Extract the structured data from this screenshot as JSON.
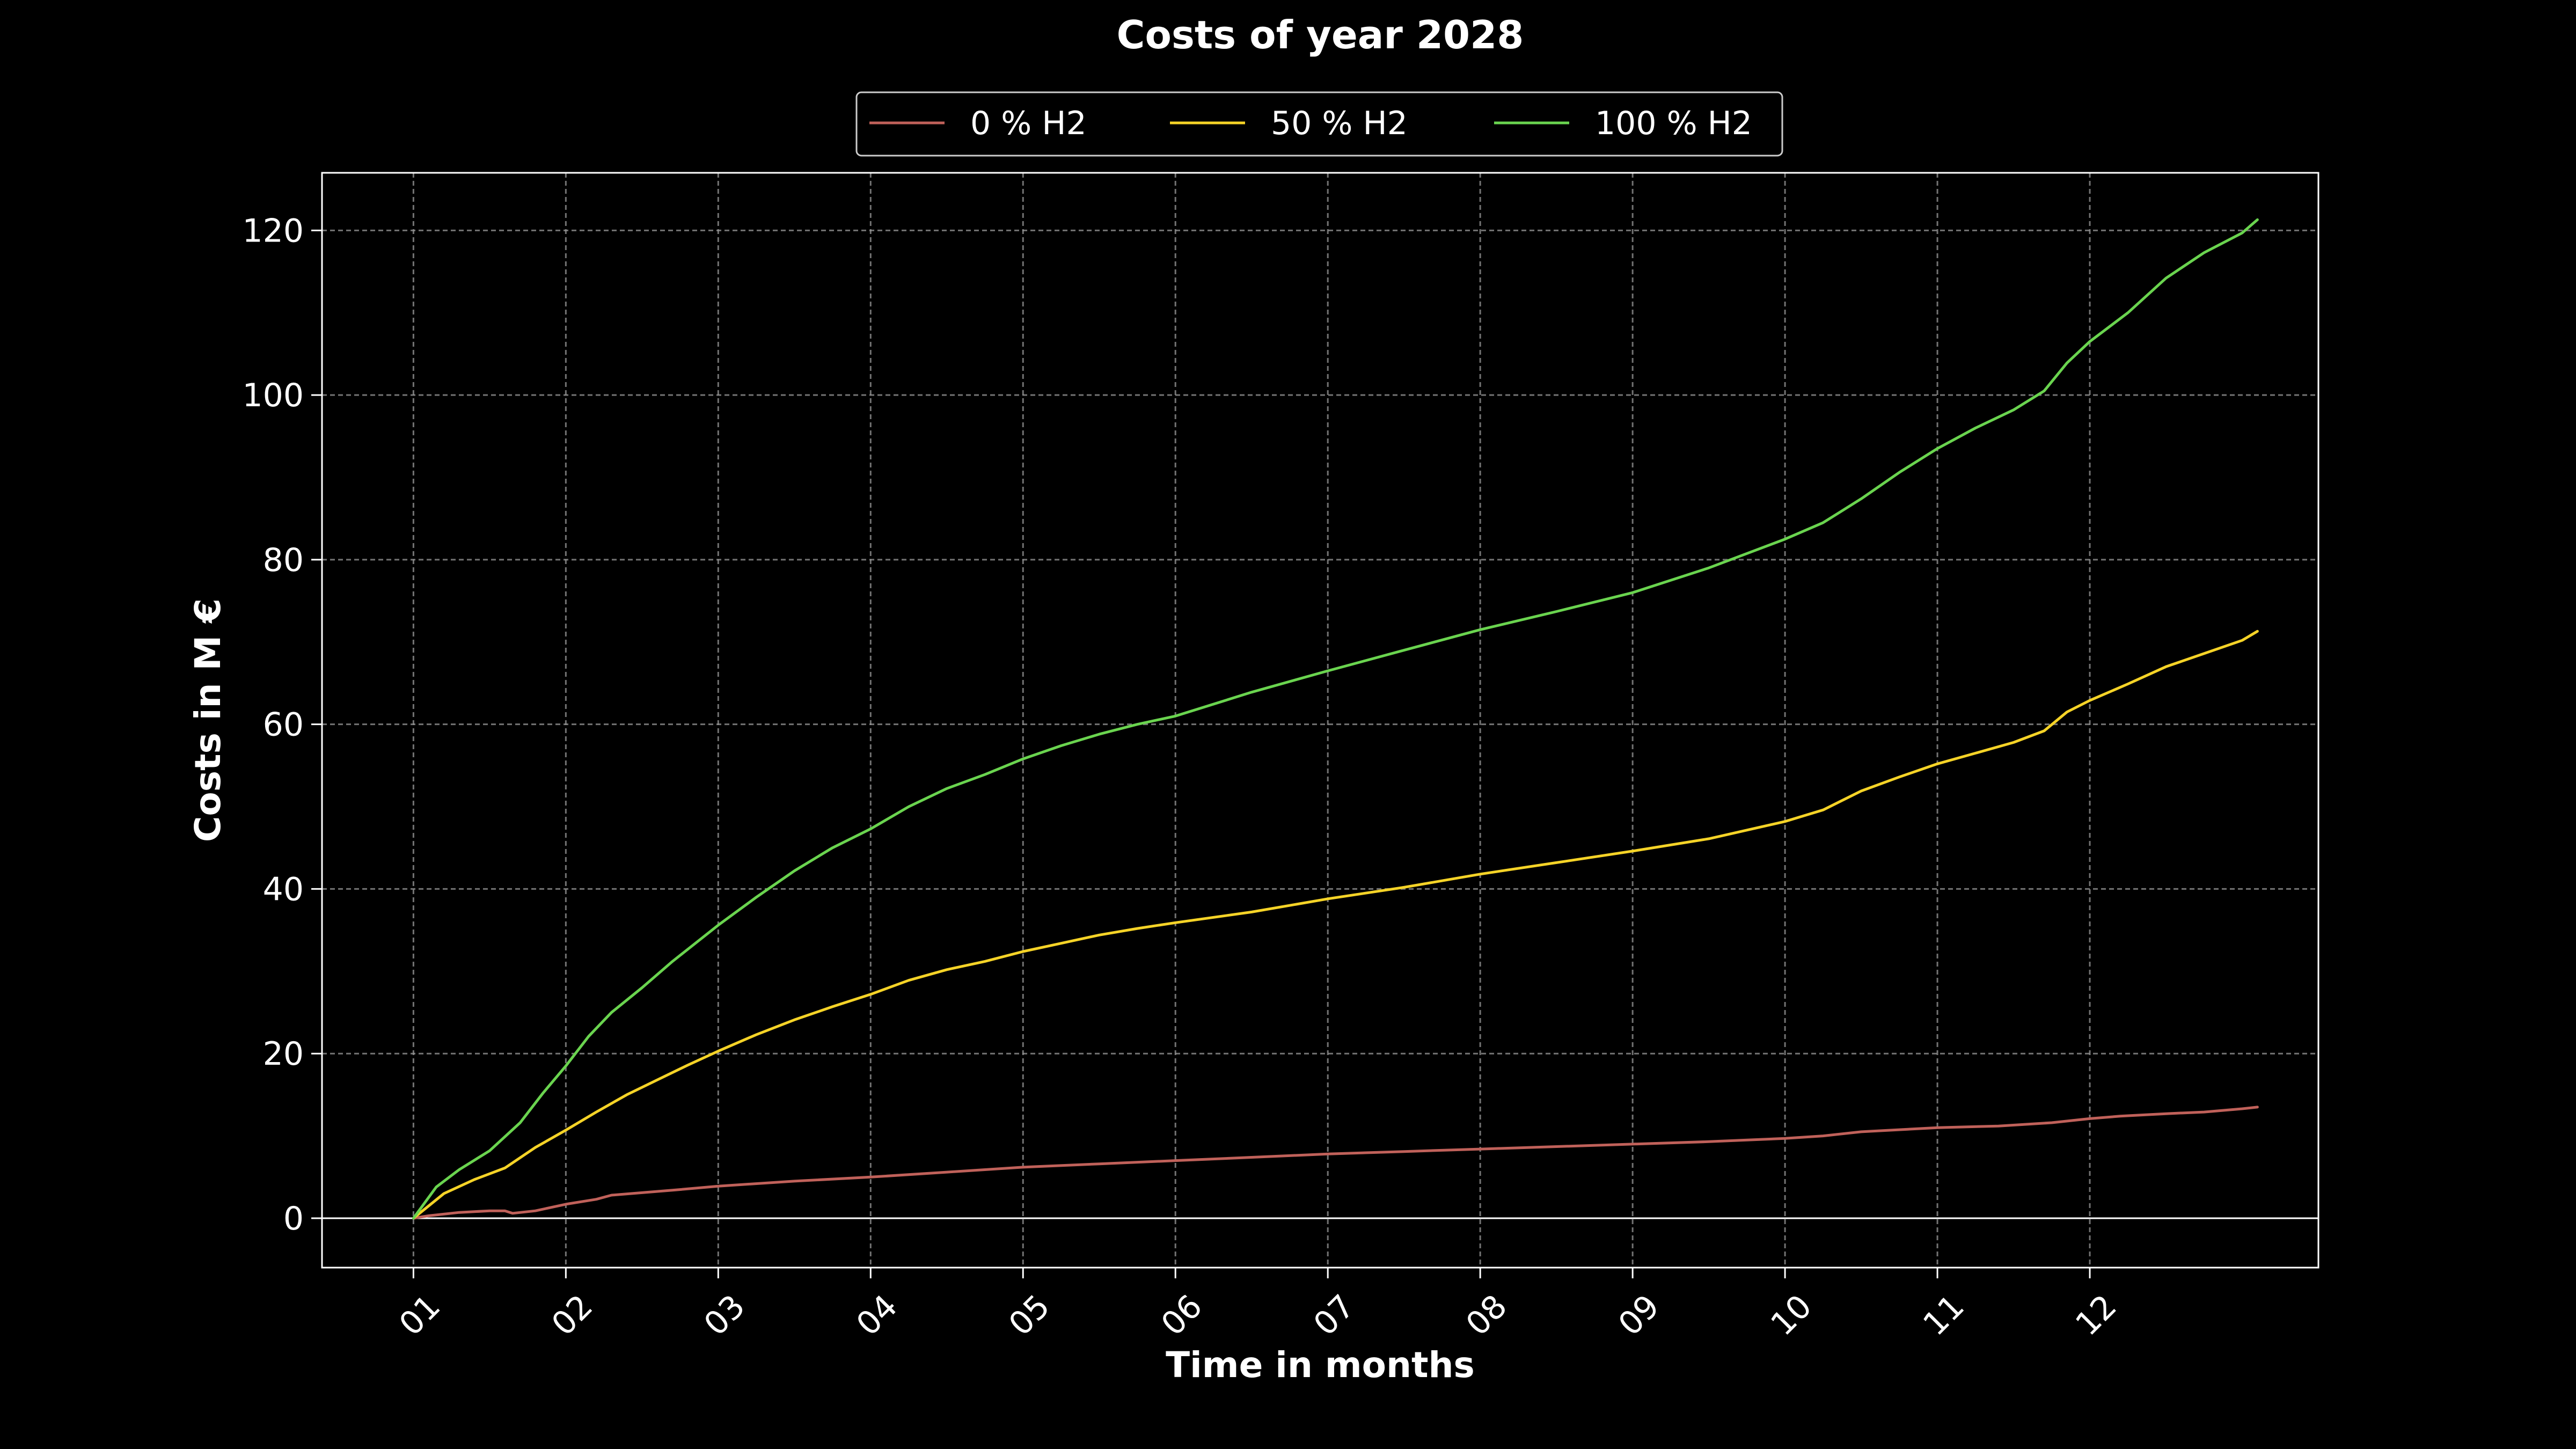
{
  "chart_data": {
    "type": "line",
    "title": "Costs of year 2028",
    "xlabel": "Time in months",
    "ylabel": "Costs in M €",
    "x_ticks": [
      "01",
      "02",
      "03",
      "04",
      "05",
      "06",
      "07",
      "08",
      "09",
      "10",
      "11",
      "12"
    ],
    "xlim": [
      0.4,
      13.5
    ],
    "ylim": [
      -6,
      127
    ],
    "y_ticks": [
      0,
      20,
      40,
      60,
      80,
      100,
      120
    ],
    "grid": true,
    "legend_position": "top-center",
    "series": [
      {
        "name": "0 % H2",
        "color": "#c0615a",
        "points": [
          [
            1.0,
            0
          ],
          [
            1.1,
            0.3
          ],
          [
            1.3,
            0.7
          ],
          [
            1.5,
            0.9
          ],
          [
            1.6,
            0.9
          ],
          [
            1.65,
            0.6
          ],
          [
            1.8,
            0.9
          ],
          [
            2.0,
            1.7
          ],
          [
            2.2,
            2.3
          ],
          [
            2.3,
            2.8
          ],
          [
            2.5,
            3.1
          ],
          [
            2.7,
            3.4
          ],
          [
            3.0,
            3.9
          ],
          [
            3.5,
            4.5
          ],
          [
            4.0,
            5.0
          ],
          [
            4.5,
            5.6
          ],
          [
            5.0,
            6.2
          ],
          [
            5.5,
            6.6
          ],
          [
            6.0,
            7.0
          ],
          [
            6.5,
            7.4
          ],
          [
            7.0,
            7.8
          ],
          [
            7.5,
            8.1
          ],
          [
            8.0,
            8.4
          ],
          [
            8.5,
            8.7
          ],
          [
            9.0,
            9.0
          ],
          [
            9.5,
            9.3
          ],
          [
            10.0,
            9.7
          ],
          [
            10.25,
            10.0
          ],
          [
            10.5,
            10.5
          ],
          [
            11.0,
            11.0
          ],
          [
            11.4,
            11.2
          ],
          [
            11.75,
            11.6
          ],
          [
            12.0,
            12.1
          ],
          [
            12.2,
            12.4
          ],
          [
            12.5,
            12.7
          ],
          [
            12.75,
            12.9
          ],
          [
            13.0,
            13.3
          ],
          [
            13.1,
            13.5
          ]
        ]
      },
      {
        "name": "50 % H2",
        "color": "#f5d327",
        "points": [
          [
            1.0,
            0
          ],
          [
            1.2,
            3.0
          ],
          [
            1.4,
            4.7
          ],
          [
            1.6,
            6.1
          ],
          [
            1.8,
            8.6
          ],
          [
            2.0,
            10.7
          ],
          [
            2.2,
            12.9
          ],
          [
            2.4,
            15.0
          ],
          [
            2.6,
            16.8
          ],
          [
            2.8,
            18.6
          ],
          [
            3.0,
            20.3
          ],
          [
            3.25,
            22.3
          ],
          [
            3.5,
            24.1
          ],
          [
            3.75,
            25.7
          ],
          [
            4.0,
            27.2
          ],
          [
            4.25,
            28.9
          ],
          [
            4.5,
            30.2
          ],
          [
            4.75,
            31.2
          ],
          [
            5.0,
            32.4
          ],
          [
            5.25,
            33.4
          ],
          [
            5.5,
            34.4
          ],
          [
            5.75,
            35.2
          ],
          [
            6.0,
            35.9
          ],
          [
            6.5,
            37.2
          ],
          [
            7.0,
            38.8
          ],
          [
            7.5,
            40.2
          ],
          [
            8.0,
            41.8
          ],
          [
            8.5,
            43.2
          ],
          [
            9.0,
            44.6
          ],
          [
            9.5,
            46.1
          ],
          [
            10.0,
            48.2
          ],
          [
            10.25,
            49.6
          ],
          [
            10.5,
            51.9
          ],
          [
            10.75,
            53.6
          ],
          [
            11.0,
            55.2
          ],
          [
            11.25,
            56.5
          ],
          [
            11.5,
            57.8
          ],
          [
            11.7,
            59.2
          ],
          [
            11.85,
            61.5
          ],
          [
            12.0,
            62.9
          ],
          [
            12.25,
            64.9
          ],
          [
            12.5,
            67.0
          ],
          [
            12.75,
            68.6
          ],
          [
            13.0,
            70.2
          ],
          [
            13.1,
            71.3
          ]
        ]
      },
      {
        "name": "100 % H2",
        "color": "#6ad44f",
        "points": [
          [
            1.0,
            0
          ],
          [
            1.15,
            3.8
          ],
          [
            1.3,
            5.9
          ],
          [
            1.5,
            8.2
          ],
          [
            1.7,
            11.6
          ],
          [
            1.85,
            15.2
          ],
          [
            2.0,
            18.5
          ],
          [
            2.15,
            22.1
          ],
          [
            2.3,
            25.0
          ],
          [
            2.5,
            28.0
          ],
          [
            2.7,
            31.2
          ],
          [
            3.0,
            35.6
          ],
          [
            3.25,
            39.0
          ],
          [
            3.5,
            42.2
          ],
          [
            3.75,
            45.0
          ],
          [
            4.0,
            47.3
          ],
          [
            4.25,
            50.0
          ],
          [
            4.5,
            52.2
          ],
          [
            4.75,
            53.9
          ],
          [
            5.0,
            55.8
          ],
          [
            5.25,
            57.4
          ],
          [
            5.5,
            58.8
          ],
          [
            5.75,
            60.0
          ],
          [
            6.0,
            61.0
          ],
          [
            6.5,
            63.9
          ],
          [
            7.0,
            66.5
          ],
          [
            7.5,
            69.0
          ],
          [
            8.0,
            71.5
          ],
          [
            8.5,
            73.7
          ],
          [
            9.0,
            76.0
          ],
          [
            9.5,
            79.0
          ],
          [
            10.0,
            82.5
          ],
          [
            10.25,
            84.5
          ],
          [
            10.5,
            87.4
          ],
          [
            10.75,
            90.6
          ],
          [
            11.0,
            93.5
          ],
          [
            11.25,
            96.0
          ],
          [
            11.5,
            98.2
          ],
          [
            11.7,
            100.5
          ],
          [
            11.85,
            103.9
          ],
          [
            12.0,
            106.5
          ],
          [
            12.25,
            110.0
          ],
          [
            12.5,
            114.2
          ],
          [
            12.75,
            117.3
          ],
          [
            13.0,
            119.7
          ],
          [
            13.1,
            121.3
          ]
        ]
      }
    ]
  }
}
